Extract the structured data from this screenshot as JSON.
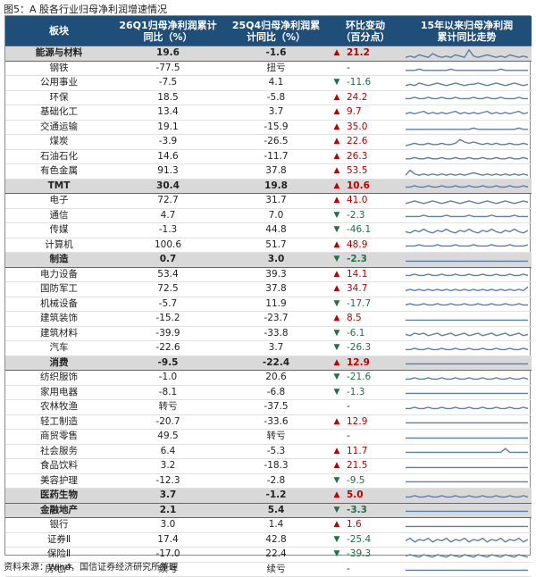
{
  "figure_title": "图5：A 股各行业归母净利润增速情况",
  "header": {
    "col_sector": "板块",
    "col_q1_line1": "26Q1归母净利润累计",
    "col_q1_line2": "同比（%）",
    "col_q4_line1": "25Q4归母净利润累",
    "col_q4_line2": "计同比（%）",
    "col_chg_line1": "环比变动",
    "col_chg_line2": "（百分点）",
    "col_trend_line1": "15年以来归母净利润",
    "col_trend_line2": "累计同比走势"
  },
  "colors": {
    "header_bg": "#1f4e79",
    "group_bg": "#d9d9d9",
    "up": "#c00000",
    "down": "#1e7145",
    "sparkline": "#5b7fa8"
  },
  "rows": [
    {
      "name": "能源与材料",
      "group": true,
      "q1": "19.6",
      "q4": "-1.6",
      "dir": "up",
      "chg": "21.2",
      "trend": [
        2,
        3,
        2,
        4,
        3,
        2,
        5,
        3,
        2,
        3,
        2,
        4,
        3,
        2,
        8,
        3,
        2,
        3,
        4,
        3,
        2,
        3,
        2,
        4,
        3,
        2,
        3,
        2
      ]
    },
    {
      "name": "钢铁",
      "group": false,
      "q1": "-77.5",
      "q4": "扭亏",
      "dir": "none",
      "chg": "-",
      "trend": [
        3,
        3,
        3,
        4,
        3,
        3,
        3,
        3,
        3,
        3,
        4,
        3,
        3,
        3,
        3,
        3,
        3,
        3,
        3,
        3,
        3,
        4,
        3,
        3,
        3,
        3,
        3,
        3
      ]
    },
    {
      "name": "公用事业",
      "group": false,
      "q1": "-7.5",
      "q4": "4.1",
      "dir": "down",
      "chg": "-11.6",
      "trend": [
        3,
        4,
        3,
        5,
        4,
        3,
        4,
        5,
        4,
        3,
        4,
        5,
        4,
        3,
        4,
        4,
        5,
        4,
        3,
        4,
        5,
        4,
        3,
        4,
        5,
        4,
        3,
        4
      ]
    },
    {
      "name": "环保",
      "group": false,
      "q1": "18.5",
      "q4": "-5.8",
      "dir": "up",
      "chg": "24.2",
      "trend": [
        4,
        4,
        5,
        4,
        4,
        5,
        4,
        4,
        5,
        4,
        4,
        5,
        4,
        4,
        4,
        5,
        4,
        4,
        5,
        4,
        4,
        5,
        4,
        4,
        4,
        5,
        4,
        4
      ]
    },
    {
      "name": "基础化工",
      "group": false,
      "q1": "13.4",
      "q4": "3.7",
      "dir": "up",
      "chg": "9.7",
      "trend": [
        4,
        5,
        4,
        5,
        6,
        4,
        5,
        4,
        5,
        4,
        5,
        6,
        4,
        5,
        4,
        5,
        4,
        5,
        6,
        4,
        5,
        4,
        5,
        4,
        5,
        6,
        4,
        5
      ]
    },
    {
      "name": "交通运输",
      "group": false,
      "q1": "19.1",
      "q4": "-15.9",
      "dir": "up",
      "chg": "35.0",
      "trend": [
        3,
        3,
        3,
        3,
        3,
        3,
        3,
        3,
        3,
        3,
        3,
        3,
        3,
        3,
        3,
        4,
        3,
        3,
        3,
        3,
        3,
        3,
        3,
        3,
        3,
        4,
        3,
        3
      ]
    },
    {
      "name": "煤炭",
      "group": false,
      "q1": "-3.9",
      "q4": "-26.5",
      "dir": "up",
      "chg": "22.6",
      "trend": [
        2,
        3,
        4,
        3,
        3,
        4,
        3,
        3,
        4,
        3,
        3,
        4,
        7,
        5,
        4,
        5,
        4,
        3,
        4,
        3,
        4,
        3,
        3,
        4,
        3,
        3,
        4,
        3
      ]
    },
    {
      "name": "石油石化",
      "group": false,
      "q1": "14.6",
      "q4": "-11.7",
      "dir": "up",
      "chg": "26.3",
      "trend": [
        3,
        3,
        4,
        3,
        3,
        4,
        3,
        3,
        4,
        3,
        3,
        4,
        3,
        3,
        4,
        3,
        3,
        4,
        3,
        3,
        4,
        3,
        3,
        4,
        3,
        3,
        4,
        3
      ]
    },
    {
      "name": "有色金属",
      "group": false,
      "q1": "91.3",
      "q4": "37.8",
      "dir": "up",
      "chg": "53.5",
      "trend": [
        2,
        6,
        3,
        2,
        3,
        2,
        3,
        2,
        3,
        2,
        3,
        2,
        3,
        2,
        3,
        4,
        3,
        2,
        3,
        2,
        3,
        2,
        3,
        2,
        3,
        2,
        3,
        2
      ]
    },
    {
      "name": "TMT",
      "group": true,
      "q1": "30.4",
      "q4": "19.8",
      "dir": "up",
      "chg": "10.6",
      "trend": [
        4,
        4,
        5,
        4,
        4,
        5,
        4,
        4,
        5,
        4,
        4,
        5,
        4,
        4,
        5,
        4,
        4,
        5,
        4,
        4,
        5,
        4,
        4,
        5,
        4,
        4,
        5,
        4
      ]
    },
    {
      "name": "电子",
      "group": false,
      "q1": "72.7",
      "q4": "31.7",
      "dir": "up",
      "chg": "41.0",
      "trend": [
        3,
        4,
        5,
        4,
        3,
        4,
        5,
        4,
        3,
        4,
        5,
        4,
        3,
        4,
        5,
        4,
        3,
        4,
        5,
        4,
        3,
        4,
        5,
        4,
        3,
        4,
        5,
        4
      ]
    },
    {
      "name": "通信",
      "group": false,
      "q1": "4.7",
      "q4": "7.0",
      "dir": "down",
      "chg": "-2.3",
      "trend": [
        4,
        4,
        4,
        4,
        5,
        4,
        4,
        4,
        4,
        5,
        4,
        4,
        4,
        4,
        5,
        4,
        4,
        4,
        4,
        5,
        4,
        4,
        4,
        4,
        5,
        4,
        4,
        4
      ]
    },
    {
      "name": "传媒",
      "group": false,
      "q1": "-1.3",
      "q4": "44.8",
      "dir": "down",
      "chg": "-46.1",
      "trend": [
        4,
        3,
        5,
        4,
        6,
        4,
        3,
        5,
        4,
        6,
        4,
        3,
        5,
        4,
        6,
        4,
        3,
        5,
        4,
        6,
        4,
        3,
        5,
        4,
        6,
        4,
        3,
        5
      ]
    },
    {
      "name": "计算机",
      "group": false,
      "q1": "100.6",
      "q4": "51.7",
      "dir": "up",
      "chg": "48.9",
      "trend": [
        4,
        4,
        4,
        5,
        4,
        4,
        4,
        5,
        4,
        4,
        4,
        5,
        4,
        4,
        4,
        5,
        4,
        4,
        4,
        5,
        4,
        4,
        4,
        5,
        4,
        4,
        4,
        5
      ]
    },
    {
      "name": "制造",
      "group": true,
      "q1": "0.7",
      "q4": "3.0",
      "dir": "down",
      "chg": "-2.3",
      "trend": [
        4,
        4,
        4,
        4,
        4,
        4,
        4,
        4,
        4,
        4,
        4,
        4,
        4,
        4,
        4,
        4,
        4,
        4,
        4,
        4,
        4,
        4,
        4,
        4,
        4,
        4,
        4,
        4
      ]
    },
    {
      "name": "电力设备",
      "group": false,
      "q1": "53.4",
      "q4": "39.3",
      "dir": "up",
      "chg": "14.1",
      "trend": [
        4,
        4,
        5,
        4,
        4,
        5,
        4,
        4,
        5,
        4,
        4,
        5,
        4,
        4,
        5,
        4,
        4,
        5,
        4,
        4,
        5,
        4,
        4,
        5,
        4,
        4,
        5,
        4
      ]
    },
    {
      "name": "国防军工",
      "group": false,
      "q1": "72.5",
      "q4": "37.8",
      "dir": "up",
      "chg": "34.7",
      "trend": [
        4,
        5,
        4,
        5,
        4,
        5,
        4,
        5,
        4,
        5,
        4,
        5,
        4,
        5,
        4,
        5,
        4,
        5,
        4,
        5,
        4,
        5,
        4,
        5,
        4,
        5,
        4,
        7
      ]
    },
    {
      "name": "机械设备",
      "group": false,
      "q1": "-5.7",
      "q4": "11.9",
      "dir": "down",
      "chg": "-17.7",
      "trend": [
        4,
        5,
        4,
        4,
        5,
        4,
        4,
        5,
        4,
        4,
        5,
        4,
        4,
        5,
        4,
        4,
        5,
        4,
        4,
        5,
        4,
        4,
        5,
        4,
        4,
        5,
        4,
        4
      ]
    },
    {
      "name": "建筑装饰",
      "group": false,
      "q1": "-15.2",
      "q4": "-23.7",
      "dir": "up",
      "chg": "8.5",
      "trend": [
        4,
        4,
        4,
        4,
        4,
        4,
        4,
        4,
        4,
        4,
        4,
        4,
        4,
        4,
        4,
        4,
        4,
        4,
        4,
        4,
        4,
        4,
        4,
        4,
        4,
        4,
        4,
        4
      ]
    },
    {
      "name": "建筑材料",
      "group": false,
      "q1": "-39.9",
      "q4": "-33.8",
      "dir": "down",
      "chg": "-6.1",
      "trend": [
        4,
        3,
        5,
        4,
        5,
        3,
        4,
        5,
        3,
        4,
        5,
        3,
        4,
        5,
        3,
        4,
        5,
        3,
        4,
        5,
        3,
        4,
        5,
        3,
        4,
        5,
        3,
        4
      ]
    },
    {
      "name": "汽车",
      "group": false,
      "q1": "-22.6",
      "q4": "3.7",
      "dir": "down",
      "chg": "-26.3",
      "trend": [
        4,
        4,
        5,
        4,
        4,
        5,
        4,
        4,
        5,
        4,
        4,
        5,
        4,
        4,
        5,
        4,
        4,
        5,
        4,
        4,
        5,
        4,
        4,
        5,
        4,
        4,
        5,
        4
      ]
    },
    {
      "name": "消费",
      "group": true,
      "q1": "-9.5",
      "q4": "-22.4",
      "dir": "up",
      "chg": "12.9",
      "trend": [
        4,
        4,
        4,
        4,
        4,
        4,
        4,
        4,
        4,
        4,
        4,
        4,
        4,
        4,
        4,
        4,
        4,
        4,
        4,
        4,
        4,
        4,
        4,
        4,
        4,
        4,
        4,
        4
      ]
    },
    {
      "name": "纺织服饰",
      "group": false,
      "q1": "-1.0",
      "q4": "20.6",
      "dir": "down",
      "chg": "-21.6",
      "trend": [
        4,
        4,
        5,
        4,
        4,
        5,
        4,
        4,
        5,
        4,
        4,
        5,
        4,
        4,
        5,
        4,
        4,
        5,
        4,
        4,
        5,
        4,
        4,
        5,
        4,
        4,
        5,
        4
      ]
    },
    {
      "name": "家用电器",
      "group": false,
      "q1": "-8.1",
      "q4": "-6.8",
      "dir": "down",
      "chg": "-1.3",
      "trend": [
        4,
        4,
        4,
        4,
        4,
        4,
        4,
        4,
        4,
        4,
        4,
        4,
        4,
        4,
        4,
        4,
        4,
        4,
        4,
        4,
        4,
        4,
        4,
        4,
        4,
        4,
        4,
        4
      ]
    },
    {
      "name": "农林牧渔",
      "group": false,
      "q1": "转亏",
      "q4": "-37.5",
      "dir": "none",
      "chg": "-",
      "trend": [
        4,
        4,
        5,
        4,
        4,
        5,
        4,
        4,
        5,
        4,
        4,
        5,
        4,
        4,
        5,
        4,
        4,
        5,
        4,
        4,
        5,
        4,
        4,
        5,
        4,
        4,
        5,
        4
      ]
    },
    {
      "name": "轻工制造",
      "group": false,
      "q1": "-20.7",
      "q4": "-33.6",
      "dir": "up",
      "chg": "12.9",
      "trend": [
        4,
        4,
        4,
        4,
        4,
        4,
        4,
        4,
        4,
        4,
        4,
        4,
        4,
        4,
        4,
        4,
        4,
        4,
        4,
        4,
        4,
        4,
        4,
        4,
        4,
        4,
        4,
        4
      ]
    },
    {
      "name": "商贸零售",
      "group": false,
      "q1": "49.5",
      "q4": "转亏",
      "dir": "none",
      "chg": "-",
      "trend": [
        4,
        4,
        4,
        4,
        4,
        4,
        4,
        4,
        4,
        4,
        4,
        4,
        4,
        4,
        4,
        4,
        4,
        4,
        4,
        4,
        4,
        4,
        4,
        4,
        4,
        4,
        4,
        4
      ]
    },
    {
      "name": "社会服务",
      "group": false,
      "q1": "6.4",
      "q4": "-5.3",
      "dir": "up",
      "chg": "11.7",
      "trend": [
        4,
        4,
        4,
        4,
        4,
        4,
        4,
        4,
        4,
        4,
        4,
        4,
        4,
        4,
        4,
        4,
        4,
        4,
        4,
        4,
        4,
        4,
        7,
        4,
        4,
        4,
        4,
        4
      ]
    },
    {
      "name": "食品饮料",
      "group": false,
      "q1": "3.2",
      "q4": "-18.3",
      "dir": "up",
      "chg": "21.5",
      "trend": [
        4,
        4,
        4,
        4,
        4,
        4,
        4,
        4,
        4,
        4,
        4,
        4,
        4,
        4,
        4,
        4,
        4,
        4,
        4,
        4,
        4,
        4,
        4,
        4,
        4,
        4,
        4,
        4
      ]
    },
    {
      "name": "美容护理",
      "group": false,
      "q1": "-12.3",
      "q4": "-2.8",
      "dir": "down",
      "chg": "-9.5",
      "trend": [
        4,
        4,
        4,
        4,
        4,
        4,
        4,
        4,
        4,
        4,
        4,
        4,
        4,
        4,
        4,
        4,
        4,
        4,
        4,
        4,
        4,
        4,
        4,
        4,
        4,
        4,
        4,
        4
      ]
    },
    {
      "name": "医药生物",
      "group": true,
      "q1": "3.7",
      "q4": "-1.2",
      "dir": "up",
      "chg": "5.0",
      "trend": [
        4,
        4,
        5,
        4,
        4,
        5,
        4,
        4,
        5,
        4,
        4,
        5,
        4,
        4,
        5,
        4,
        4,
        5,
        4,
        4,
        5,
        4,
        4,
        5,
        4,
        4,
        5,
        4
      ]
    },
    {
      "name": "金融地产",
      "group": true,
      "q1": "2.1",
      "q4": "5.4",
      "dir": "down",
      "chg": "-3.3",
      "trend": [
        4,
        4,
        4,
        4,
        4,
        4,
        4,
        4,
        4,
        4,
        4,
        4,
        4,
        4,
        4,
        4,
        4,
        4,
        4,
        4,
        4,
        4,
        4,
        4,
        4,
        4,
        4,
        4
      ]
    },
    {
      "name": "银行",
      "group": false,
      "q1": "3.0",
      "q4": "1.4",
      "dir": "up",
      "chg": "1.6",
      "trend": [
        4,
        4,
        4,
        4,
        4,
        4,
        4,
        4,
        4,
        4,
        4,
        4,
        4,
        4,
        4,
        4,
        4,
        4,
        4,
        4,
        4,
        4,
        4,
        4,
        4,
        4,
        4,
        4
      ]
    },
    {
      "name": "证券Ⅱ",
      "group": false,
      "q1": "17.4",
      "q4": "42.8",
      "dir": "down",
      "chg": "-25.4",
      "trend": [
        4,
        6,
        3,
        5,
        4,
        6,
        3,
        5,
        4,
        6,
        3,
        5,
        4,
        6,
        3,
        5,
        4,
        6,
        3,
        5,
        4,
        6,
        3,
        5,
        4,
        6,
        3,
        5
      ]
    },
    {
      "name": "保险Ⅱ",
      "group": false,
      "q1": "-17.0",
      "q4": "22.4",
      "dir": "down",
      "chg": "-39.3",
      "trend": [
        4,
        5,
        4,
        3,
        5,
        4,
        3,
        5,
        4,
        3,
        5,
        4,
        3,
        5,
        4,
        3,
        5,
        4,
        3,
        5,
        4,
        3,
        5,
        4,
        3,
        5,
        4,
        3
      ]
    },
    {
      "name": "房地产",
      "group": false,
      "q1": "续亏",
      "q4": "续亏",
      "dir": "none",
      "chg": "-",
      "trend": [
        4,
        4,
        4,
        4,
        4,
        4,
        4,
        4,
        4,
        4,
        4,
        4,
        4,
        4,
        4,
        4,
        4,
        4,
        4,
        4,
        4,
        4,
        4,
        4,
        4,
        4,
        4,
        4
      ]
    }
  ],
  "source": "资料来源：Wind，国信证券经济研究所整理"
}
